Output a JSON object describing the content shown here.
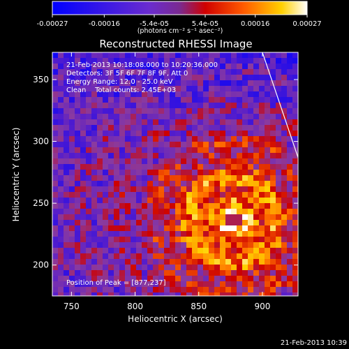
{
  "colorbar": {
    "ticks": [
      "-0.00027",
      "-0.00016",
      "-5.4e-05",
      "5.4e-05",
      "0.00016",
      "0.00027"
    ],
    "tick_values": [
      -0.00027,
      -0.00016,
      -5.4e-05,
      5.4e-05,
      0.00016,
      0.00027
    ],
    "unit_label": "(photons cm⁻² s⁻¹ asec⁻²)",
    "range": [
      -0.00027,
      0.00027
    ]
  },
  "info": {
    "time_range": "21-Feb-2013 10:18:08.000 to 10:20:36.000",
    "detectors": "Detectors: 3F 5F 6F 7F 8F 9F, Att 0",
    "energy": "Energy Range: 12.0 - 25.0 keV",
    "clean": "Clean    Total counts: 2.45E+03",
    "peak": "Position of Peak = [877,237]"
  },
  "timestamp": "21-Feb-2013 10:39",
  "colors": {
    "background": "#000000",
    "text": "#ffffff",
    "colormap": [
      "#0000ff",
      "#5a1fc8",
      "#8a3aa0",
      "#cc0000",
      "#ff6a00",
      "#ffd200",
      "#ffffff"
    ]
  },
  "chart_data": {
    "type": "heatmap",
    "title": "Reconstructed RHESSI Image",
    "xlabel": "Heliocentric X (arcsec)",
    "ylabel": "Heliocentric Y (arcsec)",
    "xlim": [
      735,
      928
    ],
    "ylim": [
      175,
      372
    ],
    "x_ticks": [
      750,
      800,
      850,
      900
    ],
    "y_ticks": [
      200,
      250,
      300,
      350
    ],
    "grid": false,
    "peak_position": [
      877,
      237
    ],
    "limb_line": [
      [
        900,
        372
      ],
      [
        928,
        287
      ]
    ]
  }
}
